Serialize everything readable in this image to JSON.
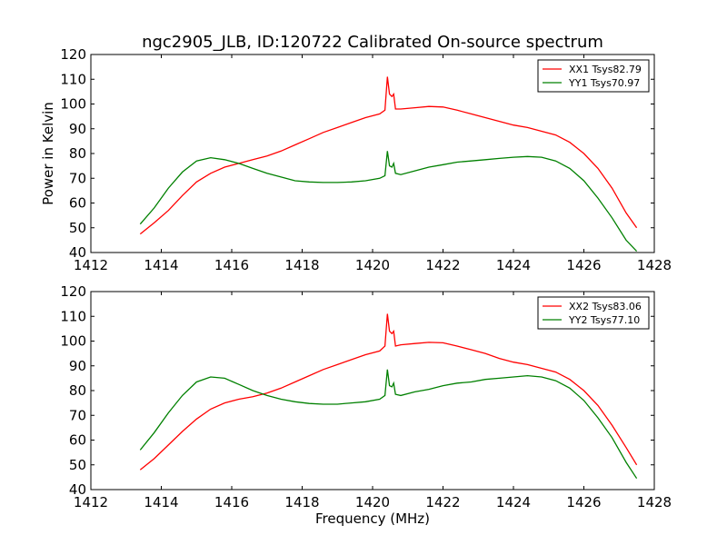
{
  "title": "ngc2905_JLB, ID:120722 Calibrated On-source spectrum",
  "chart_data": [
    {
      "type": "line",
      "title": "ngc2905_JLB, ID:120722 Calibrated On-source spectrum",
      "xlabel": "",
      "ylabel": "Power in Kelvin",
      "xlim": [
        1412,
        1428
      ],
      "ylim": [
        40,
        120
      ],
      "xticks": [
        "1412",
        "1414",
        "1416",
        "1418",
        "1420",
        "1422",
        "1424",
        "1426",
        "1428"
      ],
      "yticks": [
        "40",
        "50",
        "60",
        "70",
        "80",
        "90",
        "100",
        "110",
        "120"
      ],
      "grid": false,
      "legend": "top-right",
      "series": [
        {
          "name": "XX1 Tsys82.79",
          "color": "#ff0000",
          "points": [
            [
              1413.4,
              47.5
            ],
            [
              1413.8,
              52
            ],
            [
              1414.2,
              57
            ],
            [
              1414.6,
              63
            ],
            [
              1415.0,
              68.5
            ],
            [
              1415.4,
              72
            ],
            [
              1415.8,
              74.5
            ],
            [
              1416.2,
              76
            ],
            [
              1416.6,
              77.5
            ],
            [
              1417.0,
              79
            ],
            [
              1417.4,
              81
            ],
            [
              1417.8,
              83.5
            ],
            [
              1418.2,
              86
            ],
            [
              1418.6,
              88.5
            ],
            [
              1419.0,
              90.5
            ],
            [
              1419.4,
              92.5
            ],
            [
              1419.8,
              94.5
            ],
            [
              1420.2,
              96
            ],
            [
              1420.35,
              97.5
            ],
            [
              1420.42,
              111
            ],
            [
              1420.48,
              104
            ],
            [
              1420.55,
              103
            ],
            [
              1420.6,
              104
            ],
            [
              1420.65,
              98
            ],
            [
              1420.8,
              98
            ],
            [
              1421.2,
              98.5
            ],
            [
              1421.6,
              99
            ],
            [
              1422.0,
              98.8
            ],
            [
              1422.4,
              97.5
            ],
            [
              1422.8,
              96
            ],
            [
              1423.2,
              94.5
            ],
            [
              1423.6,
              93
            ],
            [
              1424.0,
              91.5
            ],
            [
              1424.4,
              90.5
            ],
            [
              1424.8,
              89
            ],
            [
              1425.2,
              87.5
            ],
            [
              1425.6,
              84.5
            ],
            [
              1426.0,
              80
            ],
            [
              1426.4,
              74
            ],
            [
              1426.8,
              66
            ],
            [
              1427.2,
              56
            ],
            [
              1427.5,
              50
            ]
          ]
        },
        {
          "name": "YY1 Tsys70.97",
          "color": "#008000",
          "points": [
            [
              1413.4,
              51.5
            ],
            [
              1413.8,
              58
            ],
            [
              1414.2,
              66
            ],
            [
              1414.6,
              72.5
            ],
            [
              1415.0,
              77
            ],
            [
              1415.4,
              78.3
            ],
            [
              1415.8,
              77.5
            ],
            [
              1416.2,
              76
            ],
            [
              1416.6,
              74
            ],
            [
              1417.0,
              72
            ],
            [
              1417.4,
              70.5
            ],
            [
              1417.8,
              69
            ],
            [
              1418.2,
              68.5
            ],
            [
              1418.6,
              68.3
            ],
            [
              1419.0,
              68.3
            ],
            [
              1419.4,
              68.5
            ],
            [
              1419.8,
              69
            ],
            [
              1420.2,
              70
            ],
            [
              1420.35,
              71
            ],
            [
              1420.42,
              81
            ],
            [
              1420.48,
              75
            ],
            [
              1420.55,
              74.5
            ],
            [
              1420.6,
              76
            ],
            [
              1420.65,
              72
            ],
            [
              1420.8,
              71.5
            ],
            [
              1421.2,
              73
            ],
            [
              1421.6,
              74.5
            ],
            [
              1422.0,
              75.5
            ],
            [
              1422.4,
              76.5
            ],
            [
              1422.8,
              77
            ],
            [
              1423.2,
              77.5
            ],
            [
              1423.6,
              78
            ],
            [
              1424.0,
              78.5
            ],
            [
              1424.4,
              78.8
            ],
            [
              1424.8,
              78.5
            ],
            [
              1425.2,
              77
            ],
            [
              1425.6,
              74
            ],
            [
              1426.0,
              69
            ],
            [
              1426.4,
              62
            ],
            [
              1426.8,
              54
            ],
            [
              1427.2,
              45
            ],
            [
              1427.5,
              40.5
            ]
          ]
        }
      ]
    },
    {
      "type": "line",
      "title": "",
      "xlabel": "Frequency (MHz)",
      "ylabel": "",
      "xlim": [
        1412,
        1428
      ],
      "ylim": [
        40,
        120
      ],
      "xticks": [
        "1412",
        "1414",
        "1416",
        "1418",
        "1420",
        "1422",
        "1424",
        "1426",
        "1428"
      ],
      "yticks": [
        "40",
        "50",
        "60",
        "70",
        "80",
        "90",
        "100",
        "110",
        "120"
      ],
      "grid": false,
      "legend": "top-right",
      "series": [
        {
          "name": "XX2 Tsys83.06",
          "color": "#ff0000",
          "points": [
            [
              1413.4,
              48
            ],
            [
              1413.8,
              52.5
            ],
            [
              1414.2,
              58
            ],
            [
              1414.6,
              63.5
            ],
            [
              1415.0,
              68.5
            ],
            [
              1415.4,
              72.5
            ],
            [
              1415.8,
              75
            ],
            [
              1416.2,
              76.5
            ],
            [
              1416.6,
              77.5
            ],
            [
              1417.0,
              79
            ],
            [
              1417.4,
              81
            ],
            [
              1417.8,
              83.5
            ],
            [
              1418.2,
              86
            ],
            [
              1418.6,
              88.5
            ],
            [
              1419.0,
              90.5
            ],
            [
              1419.4,
              92.5
            ],
            [
              1419.8,
              94.5
            ],
            [
              1420.2,
              96
            ],
            [
              1420.35,
              98
            ],
            [
              1420.42,
              111
            ],
            [
              1420.48,
              104
            ],
            [
              1420.55,
              103
            ],
            [
              1420.6,
              104
            ],
            [
              1420.65,
              98
            ],
            [
              1420.8,
              98.5
            ],
            [
              1421.2,
              99
            ],
            [
              1421.6,
              99.5
            ],
            [
              1422.0,
              99.3
            ],
            [
              1422.4,
              98
            ],
            [
              1422.8,
              96.5
            ],
            [
              1423.2,
              95
            ],
            [
              1423.6,
              93
            ],
            [
              1424.0,
              91.5
            ],
            [
              1424.4,
              90.5
            ],
            [
              1424.8,
              89
            ],
            [
              1425.2,
              87.5
            ],
            [
              1425.6,
              84.5
            ],
            [
              1426.0,
              80
            ],
            [
              1426.4,
              74
            ],
            [
              1426.8,
              66
            ],
            [
              1427.2,
              57
            ],
            [
              1427.5,
              50
            ]
          ]
        },
        {
          "name": "YY2 Tsys77.10",
          "color": "#008000",
          "points": [
            [
              1413.4,
              56
            ],
            [
              1413.8,
              63
            ],
            [
              1414.2,
              71
            ],
            [
              1414.6,
              78
            ],
            [
              1415.0,
              83.5
            ],
            [
              1415.4,
              85.5
            ],
            [
              1415.8,
              85
            ],
            [
              1416.2,
              82.5
            ],
            [
              1416.6,
              80
            ],
            [
              1417.0,
              78
            ],
            [
              1417.4,
              76.5
            ],
            [
              1417.8,
              75.5
            ],
            [
              1418.2,
              74.8
            ],
            [
              1418.6,
              74.5
            ],
            [
              1419.0,
              74.5
            ],
            [
              1419.4,
              75
            ],
            [
              1419.8,
              75.5
            ],
            [
              1420.2,
              76.5
            ],
            [
              1420.35,
              78
            ],
            [
              1420.42,
              88.5
            ],
            [
              1420.48,
              82
            ],
            [
              1420.55,
              81.5
            ],
            [
              1420.6,
              83
            ],
            [
              1420.65,
              78.5
            ],
            [
              1420.8,
              78
            ],
            [
              1421.2,
              79.5
            ],
            [
              1421.6,
              80.5
            ],
            [
              1422.0,
              82
            ],
            [
              1422.4,
              83
            ],
            [
              1422.8,
              83.5
            ],
            [
              1423.2,
              84.5
            ],
            [
              1423.6,
              85
            ],
            [
              1424.0,
              85.5
            ],
            [
              1424.4,
              86
            ],
            [
              1424.8,
              85.5
            ],
            [
              1425.2,
              84
            ],
            [
              1425.6,
              81
            ],
            [
              1426.0,
              76
            ],
            [
              1426.4,
              69
            ],
            [
              1426.8,
              61
            ],
            [
              1427.2,
              51
            ],
            [
              1427.5,
              44.5
            ]
          ]
        }
      ]
    }
  ]
}
